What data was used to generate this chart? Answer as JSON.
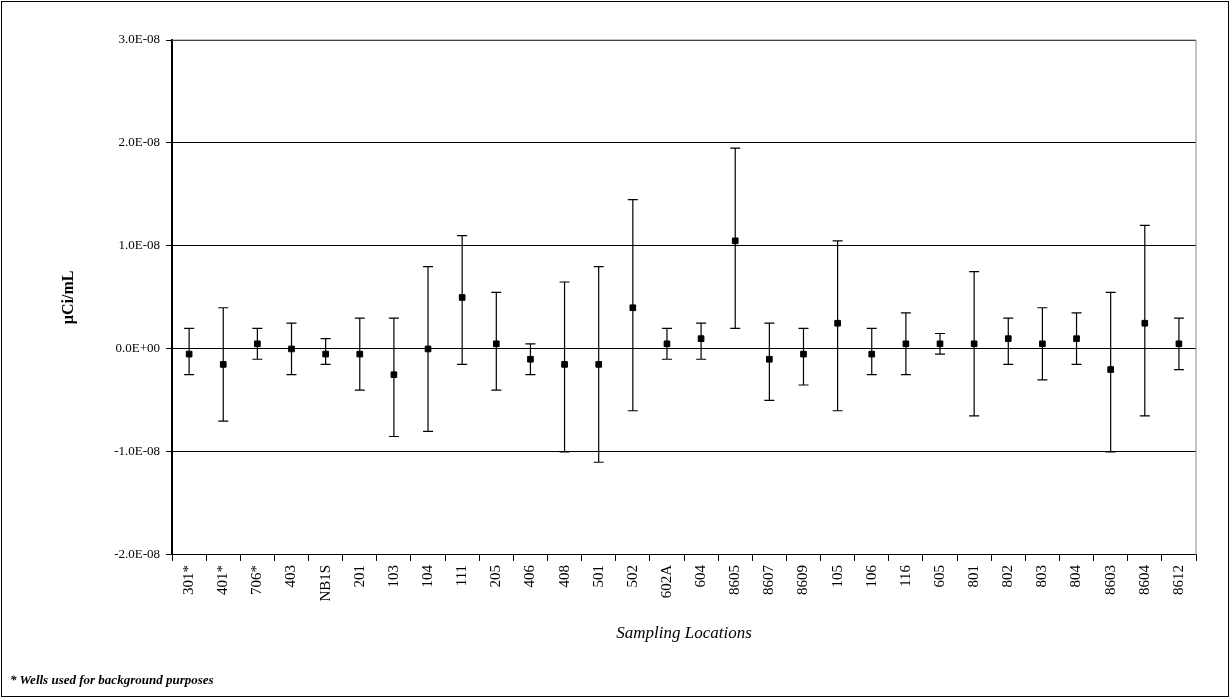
{
  "chart_data": {
    "type": "scatter",
    "xlabel": "Sampling Locations",
    "ylabel": "µCi/mL",
    "annotations": [
      "* Wells used for background purposes"
    ],
    "categories": [
      "301*",
      "401*",
      "706*",
      "403",
      "NB1S",
      "201",
      "103",
      "104",
      "111",
      "205",
      "406",
      "408",
      "501",
      "502",
      "602A",
      "604",
      "8605",
      "8607",
      "8609",
      "105",
      "106",
      "116",
      "605",
      "801",
      "802",
      "803",
      "804",
      "8603",
      "8604",
      "8612"
    ],
    "series": [
      {
        "color": "#000000",
        "values": [
          -5e-10,
          -1.5e-09,
          5e-10,
          0,
          -5e-10,
          -5e-10,
          -2.5e-09,
          0,
          5e-09,
          5e-10,
          -1e-09,
          -1.5e-09,
          -1.5e-09,
          4e-09,
          5e-10,
          1e-09,
          1.05e-08,
          -1e-09,
          -5e-10,
          2.5e-09,
          -5e-10,
          5e-10,
          5e-10,
          5e-10,
          1e-09,
          5e-10,
          1e-09,
          -2e-09,
          2.5e-09,
          5e-10
        ],
        "errors": [
          [
            -2.5e-09,
            2e-09
          ],
          [
            -7e-09,
            4e-09
          ],
          [
            -1e-09,
            2e-09
          ],
          [
            -2.5e-09,
            2.5e-09
          ],
          [
            -1.5e-09,
            1e-09
          ],
          [
            -4e-09,
            3e-09
          ],
          [
            -8.5e-09,
            3e-09
          ],
          [
            -8e-09,
            8e-09
          ],
          [
            -1.5e-09,
            1.1e-08
          ],
          [
            -4e-09,
            5.5e-09
          ],
          [
            -2.5e-09,
            5e-10
          ],
          [
            -1e-08,
            6.5e-09
          ],
          [
            -1.1e-08,
            8e-09
          ],
          [
            -6e-09,
            1.45e-08
          ],
          [
            -1e-09,
            2e-09
          ],
          [
            -1e-09,
            2.5e-09
          ],
          [
            2e-09,
            1.95e-08
          ],
          [
            -5e-09,
            2.5e-09
          ],
          [
            -3.5e-09,
            2e-09
          ],
          [
            -6e-09,
            1.05e-08
          ],
          [
            -2.5e-09,
            2e-09
          ],
          [
            -2.5e-09,
            3.5e-09
          ],
          [
            -5e-10,
            1.5e-09
          ],
          [
            -6.5e-09,
            7.5e-09
          ],
          [
            -1.5e-09,
            3e-09
          ],
          [
            -3e-09,
            4e-09
          ],
          [
            -1.5e-09,
            3.5e-09
          ],
          [
            -1e-08,
            5.5e-09
          ],
          [
            -6.5e-09,
            1.2e-08
          ],
          [
            -2e-09,
            3e-09
          ]
        ]
      }
    ],
    "marker": "square",
    "ylim": [
      -2e-08,
      3e-08
    ],
    "yticks": [
      {
        "value": 3e-08,
        "label": "3.0E-08"
      },
      {
        "value": 2e-08,
        "label": "2.0E-08"
      },
      {
        "value": 1e-08,
        "label": "1.0E-08"
      },
      {
        "value": 0,
        "label": "0.0E+00"
      },
      {
        "value": -1e-08,
        "label": "-1.0E-08"
      },
      {
        "value": -2e-08,
        "label": "-2.0E-08"
      }
    ],
    "grid": "y",
    "legend": false
  }
}
